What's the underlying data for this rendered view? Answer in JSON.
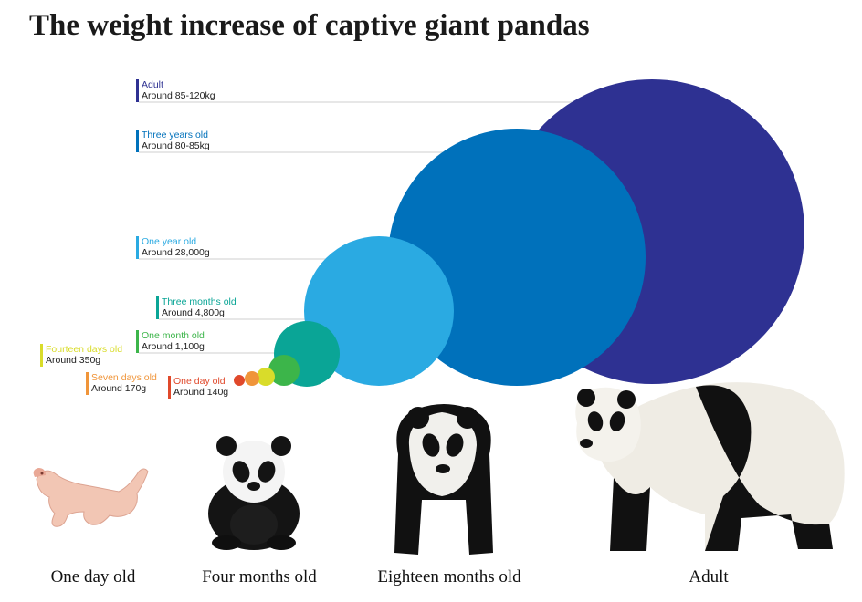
{
  "title": "The weight increase of captive giant pandas",
  "chart_data": {
    "type": "bubble",
    "title": "The weight increase of captive giant pandas",
    "series": [
      {
        "stage": "One day old",
        "weight": "Around 140g",
        "color": "#e0492b"
      },
      {
        "stage": "Seven days old",
        "weight": "Around 170g",
        "color": "#f0953a"
      },
      {
        "stage": "Fourteen days old",
        "weight": "Around 350g",
        "color": "#d9dc2a"
      },
      {
        "stage": "One month old",
        "weight": "Around 1,100g",
        "color": "#3cb54a"
      },
      {
        "stage": "Three months old",
        "weight": "Around 4,800g",
        "color": "#0aa596"
      },
      {
        "stage": "One year old",
        "weight": "Around 28,000g",
        "color": "#2aaae2"
      },
      {
        "stage": "Three years old",
        "weight": "Around 80-85kg",
        "color": "#0071bb"
      },
      {
        "stage": "Adult",
        "weight": "Around 85-120kg",
        "color": "#2e3192"
      }
    ]
  },
  "captions": [
    {
      "text": "One day old",
      "icon": "newborn-panda-photo"
    },
    {
      "text": "Four months old",
      "icon": "panda-cub-photo"
    },
    {
      "text": "Eighteen months old",
      "icon": "juvenile-panda-photo"
    },
    {
      "text": "Adult",
      "icon": "adult-panda-photo"
    }
  ],
  "colors": {
    "text_dark": "#222222",
    "leader_line": "#cfcfcf"
  }
}
